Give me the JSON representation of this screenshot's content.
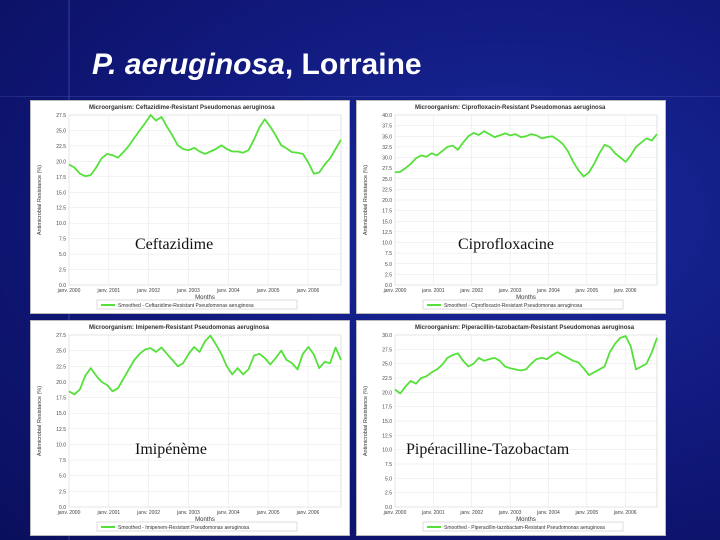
{
  "slide": {
    "title_italic": "P. aeruginosa",
    "title_rest": ", Lorraine"
  },
  "colors": {
    "series": "#55e03a",
    "background": "#10187a"
  },
  "chart_data": [
    {
      "type": "line",
      "title": "Microorganism: Ceftazidime-Resistant Pseudomonas aeruginosa",
      "caption": "Ceftazidime",
      "xlabel": "Months",
      "ylabel": "Antimicrobial Resistance (%)",
      "ylim": [
        0,
        27.5
      ],
      "yticks": [
        "0.0",
        "2.5",
        "5.0",
        "7.5",
        "10.0",
        "12.5",
        "15.0",
        "17.5",
        "20.0",
        "22.5",
        "25.0",
        "27.5"
      ],
      "xticks": [
        "janv. 2000",
        "janv. 2001",
        "janv. 2002",
        "janv. 2003",
        "janv. 2004",
        "janv. 2005",
        "janv. 2006"
      ],
      "legend": "Smoothed - Ceftazidime-Resistant Pseudomonas aeruginosa",
      "x_range": [
        2000,
        2006.83
      ],
      "y": [
        19.5,
        19.0,
        18.0,
        17.6,
        17.8,
        19.0,
        20.5,
        21.2,
        21.0,
        20.6,
        21.5,
        22.5,
        23.8,
        25.0,
        26.2,
        27.5,
        26.6,
        27.2,
        25.6,
        24.2,
        22.6,
        22.0,
        21.8,
        22.2,
        21.6,
        21.2,
        21.6,
        22.0,
        22.6,
        22.0,
        21.6,
        21.6,
        21.4,
        21.8,
        23.5,
        25.5,
        26.8,
        25.6,
        24.2,
        22.6,
        22.1,
        21.5,
        21.4,
        21.2,
        19.8,
        18.0,
        18.2,
        19.5,
        20.5,
        22.0,
        23.5
      ]
    },
    {
      "type": "line",
      "title": "Microorganism: Ciprofloxacin-Resistant Pseudomonas aeruginosa",
      "caption": "Ciprofloxacine",
      "xlabel": "Months",
      "ylabel": "Antimicrobial Resistance (%)",
      "ylim": [
        0,
        40
      ],
      "yticks": [
        "0.0",
        "2.5",
        "5.0",
        "7.5",
        "10.0",
        "12.5",
        "15.0",
        "17.5",
        "20.0",
        "22.5",
        "25.0",
        "27.5",
        "30.0",
        "32.5",
        "35.0",
        "37.5",
        "40.0"
      ],
      "xticks": [
        "janv. 2000",
        "janv. 2001",
        "janv. 2002",
        "janv. 2003",
        "janv. 2004",
        "janv. 2005",
        "janv. 2006"
      ],
      "legend": "Smoothed - Ciprofloxacin-Resistant Pseudomonas aeruginosa",
      "x_range": [
        2000,
        2006.83
      ],
      "y": [
        26.5,
        26.6,
        27.5,
        28.5,
        29.8,
        30.5,
        30.2,
        31.0,
        30.5,
        31.5,
        32.5,
        32.8,
        31.8,
        33.5,
        35.0,
        35.8,
        35.3,
        36.2,
        35.5,
        34.8,
        35.2,
        35.7,
        35.2,
        35.5,
        34.8,
        35.0,
        35.5,
        35.2,
        34.5,
        34.8,
        35.0,
        34.2,
        33.2,
        31.5,
        29.0,
        27.0,
        25.5,
        26.5,
        28.5,
        31.0,
        33.0,
        32.5,
        31.0,
        30.0,
        29.0,
        30.5,
        32.5,
        33.5,
        34.5,
        34.0,
        35.5
      ]
    },
    {
      "type": "line",
      "title": "Microorganism: Imipenem-Resistant Pseudomonas aeruginosa",
      "caption": "Imipénème",
      "xlabel": "Months",
      "ylabel": "Antimicrobial Resistance (%)",
      "ylim": [
        0,
        27.5
      ],
      "yticks": [
        "0.0",
        "2.5",
        "5.0",
        "7.5",
        "10.0",
        "12.5",
        "15.0",
        "17.5",
        "20.0",
        "22.5",
        "25.0",
        "27.5"
      ],
      "xticks": [
        "janv. 2000",
        "janv. 2001",
        "janv. 2002",
        "janv. 2003",
        "janv. 2004",
        "janv. 2005",
        "janv. 2006"
      ],
      "legend": "Smoothed - Imipenem-Resistant Pseudomonas aeruginosa",
      "x_range": [
        2000,
        2006.83
      ],
      "y": [
        18.5,
        18.0,
        18.8,
        21.0,
        22.2,
        21.0,
        20.0,
        19.5,
        18.5,
        19.0,
        20.5,
        22.0,
        23.5,
        24.5,
        25.2,
        25.4,
        24.8,
        25.5,
        24.5,
        23.5,
        22.5,
        23.0,
        24.5,
        25.6,
        24.8,
        26.5,
        27.4,
        26.0,
        24.5,
        22.5,
        21.2,
        22.2,
        21.2,
        22.0,
        24.2,
        24.5,
        23.8,
        22.8,
        23.8,
        25.0,
        23.5,
        23.0,
        22.0,
        24.5,
        25.6,
        24.4,
        22.2,
        23.2,
        23.0,
        25.5,
        23.5
      ]
    },
    {
      "type": "line",
      "title": "Microorganism: Piperacillin-tazobactam-Resistant Pseudomonas aeruginosa",
      "caption": "Pipéracilline-Tazobactam",
      "xlabel": "Months",
      "ylabel": "Antimicrobial Resistance (%)",
      "ylim": [
        0,
        30
      ],
      "yticks": [
        "0.0",
        "2.5",
        "5.0",
        "7.5",
        "10.0",
        "12.5",
        "15.0",
        "17.5",
        "20.0",
        "22.5",
        "25.0",
        "27.5",
        "30.0"
      ],
      "xticks": [
        "janv. 2000",
        "janv. 2001",
        "janv. 2002",
        "janv. 2003",
        "janv. 2004",
        "janv. 2005",
        "janv. 2006"
      ],
      "legend": "Smoothed - Piperacillin-tazobactam-Resistant Pseudomonas aeruginosa",
      "x_range": [
        2000,
        2006.83
      ],
      "y": [
        20.5,
        19.8,
        21.0,
        22.0,
        21.5,
        22.5,
        22.8,
        23.5,
        24.0,
        24.8,
        26.0,
        26.5,
        26.8,
        25.5,
        24.5,
        25.0,
        26.0,
        25.5,
        25.8,
        26.0,
        25.5,
        24.5,
        24.2,
        24.0,
        23.8,
        24.0,
        25.0,
        25.8,
        26.0,
        25.8,
        26.5,
        27.0,
        26.5,
        26.0,
        25.5,
        25.2,
        24.2,
        23.0,
        23.5,
        24.0,
        24.5,
        27.0,
        28.5,
        29.5,
        29.8,
        28.0,
        24.0,
        24.5,
        25.0,
        27.0,
        29.5
      ]
    }
  ]
}
